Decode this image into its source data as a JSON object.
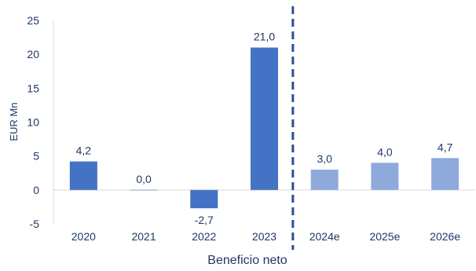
{
  "chart_data": {
    "type": "bar",
    "xlabel": "Beneficio neto",
    "ylabel": "EUR Mn",
    "ylim": [
      -5,
      25
    ],
    "yticks": [
      "-5",
      "0",
      "5",
      "10",
      "15",
      "20",
      "25"
    ],
    "categories": [
      "2020",
      "2021",
      "2022",
      "2023",
      "2024e",
      "2025e",
      "2026e"
    ],
    "values": [
      4.2,
      0.0,
      -2.7,
      21.0,
      3.0,
      4.0,
      4.7
    ],
    "value_labels": [
      "4,2",
      "0,0",
      "-2,7",
      "21,0",
      "3,0",
      "4,0",
      "4,7"
    ],
    "estimate_from_index": 4,
    "grid": false,
    "divider": "dashed vertical line between 2023 and 2024e",
    "colors": {
      "actual": "#4472c4",
      "estimate": "#8eaadb",
      "text": "#1f3864",
      "divider": "#2f4f8f",
      "axis": "#d9d9d9"
    }
  }
}
